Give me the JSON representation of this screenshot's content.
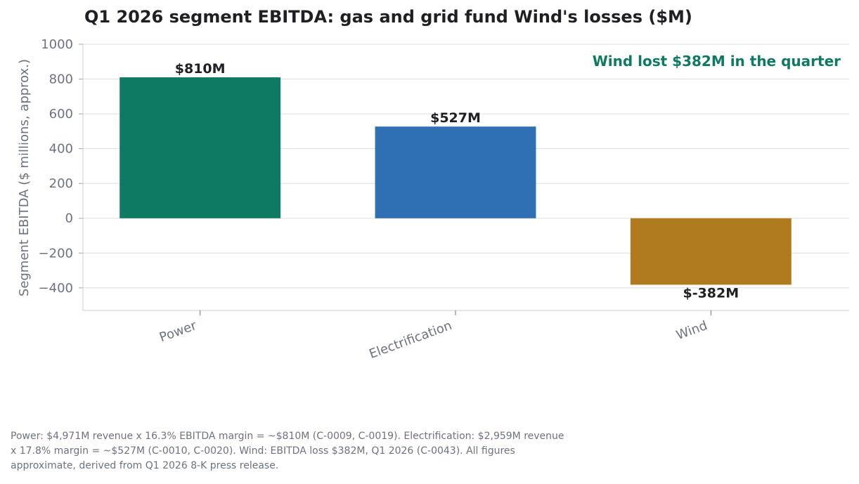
{
  "chart_data": {
    "type": "bar",
    "title": "Q1 2026 segment EBITDA: gas and grid fund Wind's losses ($M)",
    "xlabel": "",
    "ylabel": "Segment EBITDA ($ millions, approx.)",
    "categories": [
      "Power",
      "Electrification",
      "Wind"
    ],
    "values": [
      810,
      527,
      -382
    ],
    "data_labels": [
      "$810M",
      "$527M",
      "$-382M"
    ],
    "colors": [
      "#0f7a63",
      "#2f6fb3",
      "#b07b1f"
    ],
    "ylim": [
      -530,
      1000
    ],
    "yticks": [
      1000,
      800,
      600,
      400,
      200,
      0,
      -200,
      -400
    ],
    "ytick_labels": [
      "1000",
      "800",
      "600",
      "400",
      "200",
      "0",
      "−200",
      "−400"
    ],
    "grid": true,
    "annotation": {
      "text": "Wind lost $382M in the quarter",
      "position": "top-right",
      "color": "#0f7a63"
    }
  },
  "footnote": "Power: $4,971M revenue x 16.3% EBITDA margin = ~$810M (C-0009, C-0019). Electrification: $2,959M revenue x 17.8% margin = ~$527M (C-0010, C-0020). Wind: EBITDA loss $382M, Q1 2026 (C-0043). All figures approximate, derived from Q1 2026 8-K press release."
}
